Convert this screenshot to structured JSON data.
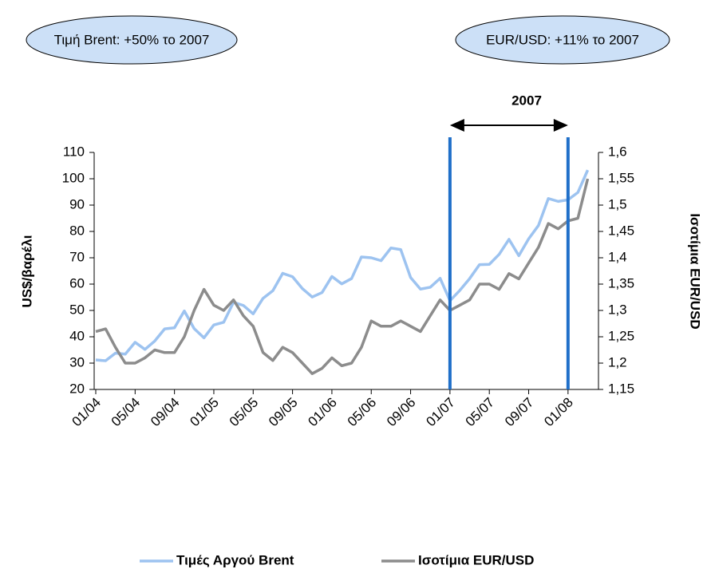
{
  "chart_data": {
    "type": "line",
    "categories": [
      "01/04",
      null,
      null,
      null,
      "05/04",
      null,
      null,
      null,
      "09/04",
      null,
      null,
      null,
      "01/05",
      null,
      null,
      null,
      "05/05",
      null,
      null,
      null,
      "09/05",
      null,
      null,
      null,
      "01/06",
      null,
      null,
      null,
      "05/06",
      null,
      null,
      null,
      "09/06",
      null,
      null,
      null,
      "01/07",
      null,
      null,
      null,
      "05/07",
      null,
      null,
      null,
      "09/07",
      null,
      null,
      null,
      "01/08",
      null,
      null
    ],
    "series": [
      {
        "name": "Τιμές Αργού Brent",
        "color": "#9dc3f0",
        "values": [
          31.2,
          30.9,
          33.8,
          33.4,
          37.9,
          35.2,
          38.4,
          43.0,
          43.4,
          49.8,
          43.1,
          39.6,
          44.5,
          45.5,
          53.1,
          51.9,
          48.7,
          54.6,
          57.5,
          64.1,
          62.8,
          58.3,
          55.1,
          56.8,
          62.9,
          60.1,
          62.1,
          70.3,
          70.0,
          68.9,
          73.7,
          73.1,
          62.5,
          58.1,
          58.8,
          62.2,
          53.7,
          57.6,
          62.1,
          67.4,
          67.5,
          71.3,
          77.0,
          70.8,
          77.2,
          82.3,
          92.5,
          91.4,
          92.0,
          94.8,
          103.3
        ]
      },
      {
        "name": "Ισοτίμια EUR/USD",
        "color": "#8c8c8c",
        "axis": "y2",
        "values": [
          1.26,
          1.265,
          1.23,
          1.2,
          1.2,
          1.21,
          1.225,
          1.22,
          1.22,
          1.25,
          1.3,
          1.34,
          1.31,
          1.3,
          1.32,
          1.29,
          1.27,
          1.22,
          1.205,
          1.23,
          1.22,
          1.2,
          1.18,
          1.19,
          1.21,
          1.195,
          1.2,
          1.23,
          1.28,
          1.27,
          1.27,
          1.28,
          1.27,
          1.26,
          1.29,
          1.32,
          1.3,
          1.31,
          1.32,
          1.35,
          1.35,
          1.34,
          1.37,
          1.36,
          1.39,
          1.42,
          1.465,
          1.455,
          1.47,
          1.475,
          1.55
        ]
      }
    ],
    "ylabel": "US$/βαρέλι",
    "y2label": "Ισοτίμια EUR/USD",
    "ylim": [
      20,
      110
    ],
    "yticks": [
      20,
      30,
      40,
      50,
      60,
      70,
      80,
      90,
      100,
      110
    ],
    "y2lim": [
      1.15,
      1.6
    ],
    "y2ticks": [
      {
        "value": 1.15,
        "label": "1,15"
      },
      {
        "value": 1.2,
        "label": "1,2"
      },
      {
        "value": 1.25,
        "label": "1,25"
      },
      {
        "value": 1.3,
        "label": "1,3"
      },
      {
        "value": 1.35,
        "label": "1,35"
      },
      {
        "value": 1.4,
        "label": "1,4"
      },
      {
        "value": 1.45,
        "label": "1,45"
      },
      {
        "value": 1.5,
        "label": "1,5"
      },
      {
        "value": 1.55,
        "label": "1,55"
      },
      {
        "value": 1.6,
        "label": "1,6"
      }
    ],
    "annotations": {
      "left_bubble": "Τιμή Brent: +50% το 2007",
      "right_bubble": "EUR/USD: +11% το 2007",
      "period": "2007",
      "period_start": "01/07",
      "period_end": "01/08",
      "line_color": "#1f6fc9"
    },
    "legend": "bottom"
  }
}
